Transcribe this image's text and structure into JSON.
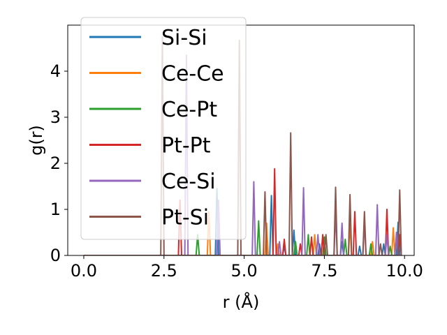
{
  "chart_data": {
    "type": "line",
    "title": "",
    "xlabel": "r (Å)",
    "ylabel": "g(r)",
    "xlim": [
      -0.5,
      10.3
    ],
    "ylim": [
      0,
      5.0
    ],
    "xticks": [
      0.0,
      2.5,
      5.0,
      7.5,
      10.0
    ],
    "xtick_labels": [
      "0.0",
      "2.5",
      "5.0",
      "7.5",
      "10.0"
    ],
    "yticks": [
      0,
      1,
      2,
      3,
      4
    ],
    "ytick_labels": [
      "0",
      "1",
      "2",
      "3",
      "4"
    ],
    "legend_position": "top-left",
    "grid": false,
    "peak_half_width": 0.05,
    "series": [
      {
        "name": "Si-Si",
        "color": "#1f77b4",
        "peaks": [
          [
            4.15,
            1.45
          ],
          [
            5.85,
            1.3
          ],
          [
            6.25,
            0.2
          ],
          [
            6.55,
            0.55
          ],
          [
            7.35,
            0.25
          ],
          [
            8.05,
            0.3
          ],
          [
            8.6,
            0.2
          ],
          [
            9.35,
            0.25
          ],
          [
            9.8,
            0.72
          ]
        ]
      },
      {
        "name": "Ce-Ce",
        "color": "#ff7f0e",
        "peaks": [
          [
            3.9,
            0.95
          ],
          [
            5.7,
            0.7
          ],
          [
            6.05,
            0.25
          ],
          [
            7.2,
            0.45
          ],
          [
            8.3,
            0.68
          ],
          [
            9.0,
            0.3
          ],
          [
            9.65,
            0.6
          ]
        ]
      },
      {
        "name": "Ce-Pt",
        "color": "#2ca02c",
        "peaks": [
          [
            3.55,
            0.45
          ],
          [
            5.45,
            0.75
          ],
          [
            6.6,
            0.3
          ],
          [
            7.0,
            0.45
          ],
          [
            7.5,
            0.4
          ],
          [
            8.15,
            0.35
          ],
          [
            8.95,
            0.25
          ],
          [
            9.55,
            0.2
          ]
        ]
      },
      {
        "name": "Pt-Pt",
        "color": "#d62728",
        "peaks": [
          [
            3.0,
            1.2
          ],
          [
            5.95,
            1.88
          ],
          [
            6.25,
            0.35
          ],
          [
            6.75,
            0.25
          ],
          [
            7.1,
            0.4
          ],
          [
            7.45,
            0.45
          ],
          [
            8.45,
            0.95
          ],
          [
            9.45,
            1.0
          ],
          [
            9.85,
            0.45
          ]
        ]
      },
      {
        "name": "Ce-Si",
        "color": "#9467bd",
        "peaks": [
          [
            3.2,
            4.35
          ],
          [
            4.2,
            1.2
          ],
          [
            5.3,
            1.6
          ],
          [
            6.1,
            0.3
          ],
          [
            6.85,
            1.47
          ],
          [
            7.3,
            0.45
          ],
          [
            7.85,
            0.95
          ],
          [
            8.05,
            0.7
          ],
          [
            8.75,
            0.7
          ],
          [
            9.15,
            1.1
          ],
          [
            9.45,
            0.45
          ],
          [
            9.75,
            0.5
          ]
        ]
      },
      {
        "name": "Pt-Si",
        "color": "#8c564b",
        "peaks": [
          [
            2.45,
            4.75
          ],
          [
            4.85,
            4.67
          ],
          [
            5.65,
            1.38
          ],
          [
            6.45,
            2.66
          ],
          [
            7.55,
            0.45
          ],
          [
            7.85,
            1.48
          ],
          [
            8.3,
            1.32
          ],
          [
            8.75,
            0.95
          ],
          [
            9.25,
            0.25
          ],
          [
            9.85,
            1.42
          ]
        ]
      }
    ]
  }
}
